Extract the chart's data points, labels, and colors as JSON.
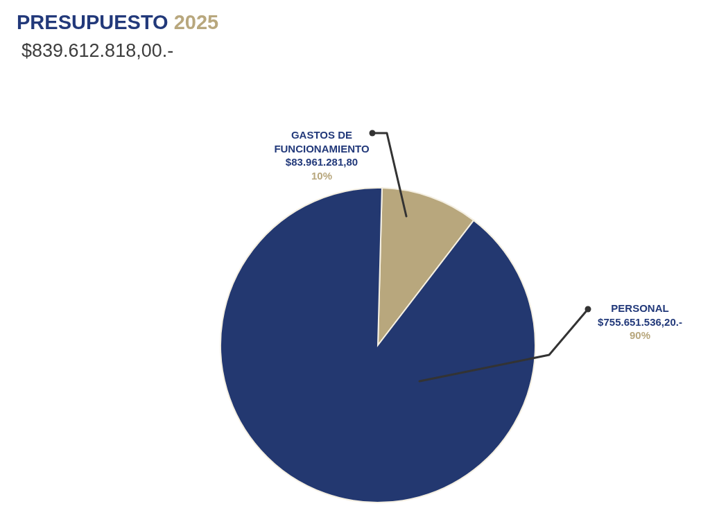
{
  "chart_data": {
    "type": "pie",
    "title": "PRESUPUESTO 2025",
    "subtitle": "$839.612.818,00.-",
    "categories": [
      "GASTOS DE FUNCIONAMIENTO",
      "PERSONAL"
    ],
    "values": [
      83961281.8,
      755651536.2
    ],
    "colors": [
      "#b8a77d",
      "#233870"
    ],
    "value_labels": [
      "$83.961.281,80",
      "$755.651.536,20.-"
    ],
    "annotations": [
      "10%",
      "90%"
    ],
    "legend": false
  }
}
